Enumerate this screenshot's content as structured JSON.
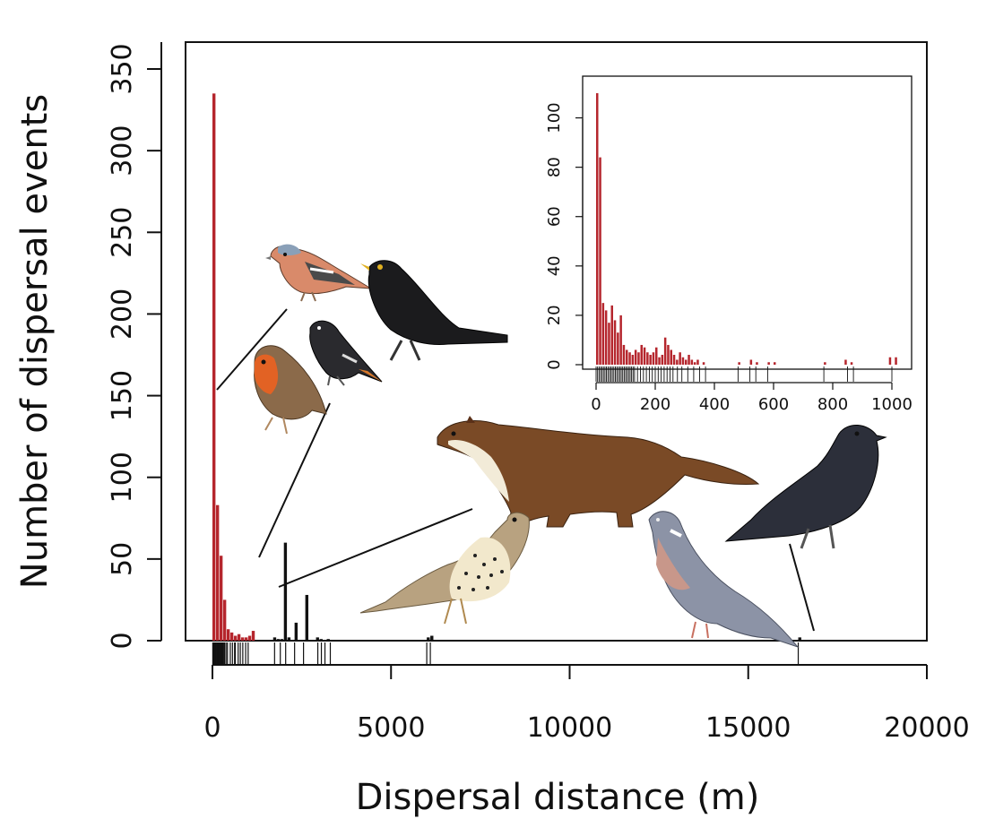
{
  "chart_data": [
    {
      "type": "bar",
      "xlabel": "Dispersal distance (m)",
      "ylabel": "Number of dispersal events",
      "xlim": [
        0,
        20000
      ],
      "ylim": [
        0,
        350
      ],
      "x_ticks": [
        0,
        5000,
        10000,
        15000,
        20000
      ],
      "y_ticks": [
        0,
        50,
        100,
        150,
        200,
        250,
        300,
        350
      ],
      "x_tick_labels": [
        "0",
        "5000",
        "10000",
        "15000",
        "20000"
      ],
      "y_tick_labels": [
        "0",
        "50",
        "100",
        "150",
        "200",
        "250",
        "300",
        "350"
      ],
      "bin_width": 100,
      "series": [
        {
          "color": "#b5262d",
          "x": [
            0,
            100,
            200,
            300,
            400,
            500,
            600,
            700,
            800,
            900,
            1000,
            1100
          ],
          "values": [
            335,
            83,
            52,
            25,
            7,
            5,
            3,
            4,
            2,
            2,
            3,
            6
          ]
        },
        {
          "color": "#111111",
          "x": [
            1700,
            1800,
            1900,
            2000,
            2100,
            2300,
            2600,
            2900,
            3000,
            3200,
            6000,
            6100,
            16400
          ],
          "values": [
            2,
            1,
            1,
            60,
            2,
            11,
            28,
            2,
            1,
            1,
            2,
            3,
            2
          ]
        }
      ],
      "rug": [
        10,
        30,
        50,
        70,
        90,
        110,
        130,
        150,
        170,
        190,
        210,
        230,
        250,
        270,
        290,
        310,
        340,
        380,
        420,
        500,
        560,
        620,
        640,
        720,
        780,
        850,
        930,
        1000,
        1740,
        1900,
        2050,
        2300,
        2550,
        2950,
        3050,
        3150,
        3300,
        6000,
        6100,
        16400
      ]
    },
    {
      "type": "bar",
      "xlim": [
        0,
        1000
      ],
      "ylim": [
        0,
        110
      ],
      "x_ticks": [
        0,
        200,
        400,
        600,
        800,
        1000
      ],
      "y_ticks": [
        0,
        20,
        40,
        60,
        80,
        100
      ],
      "x_tick_labels": [
        "0",
        "200",
        "400",
        "600",
        "800",
        "1000"
      ],
      "y_tick_labels": [
        "0",
        "20",
        "40",
        "60",
        "80",
        "100"
      ],
      "bin_width": 10,
      "series": [
        {
          "color": "#b5262d",
          "x": [
            0,
            10,
            20,
            30,
            40,
            50,
            60,
            70,
            80,
            90,
            100,
            110,
            120,
            130,
            140,
            150,
            160,
            170,
            180,
            190,
            200,
            210,
            220,
            230,
            240,
            250,
            260,
            270,
            280,
            290,
            300,
            310,
            320,
            330,
            340,
            360,
            480,
            520,
            540,
            580,
            600,
            770,
            840,
            860,
            990,
            1010
          ],
          "values": [
            110,
            84,
            25,
            22,
            17,
            24,
            18,
            13,
            20,
            8,
            6,
            5,
            4,
            6,
            5,
            8,
            7,
            5,
            4,
            5,
            7,
            3,
            4,
            11,
            8,
            6,
            4,
            2,
            5,
            3,
            2,
            4,
            2,
            1,
            2,
            1,
            1,
            2,
            1,
            1,
            1,
            1,
            2,
            1,
            3,
            3
          ]
        }
      ],
      "rug": [
        0,
        5,
        10,
        15,
        20,
        25,
        30,
        35,
        40,
        45,
        50,
        55,
        60,
        65,
        70,
        75,
        80,
        85,
        90,
        95,
        100,
        105,
        110,
        115,
        120,
        125,
        130,
        140,
        150,
        160,
        170,
        180,
        190,
        200,
        210,
        220,
        230,
        240,
        250,
        260,
        275,
        290,
        310,
        330,
        350,
        370,
        480,
        520,
        540,
        580,
        770,
        850,
        870,
        1000
      ]
    }
  ],
  "illustrations": [
    "chaffinch",
    "blackbird",
    "robin",
    "black-redstart",
    "pine-marten",
    "mistle-thrush",
    "wood-pigeon",
    "carrion-crow"
  ]
}
